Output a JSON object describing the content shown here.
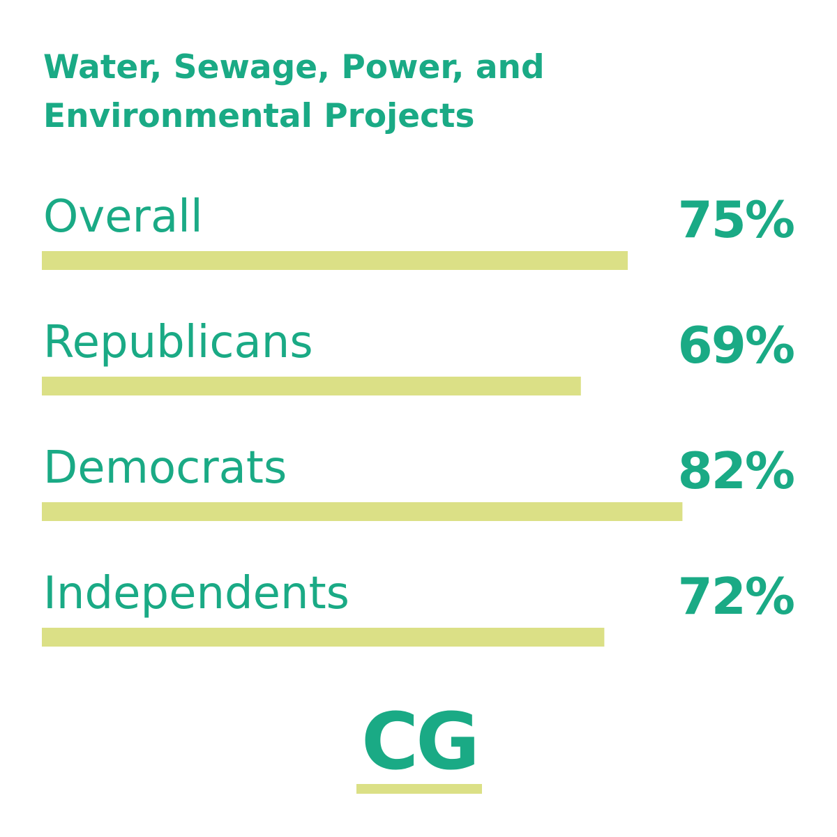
{
  "colors": {
    "accent": "#1aaa85",
    "bar": "#dbe086",
    "background": "#ffffff"
  },
  "chart_data": {
    "type": "bar",
    "orientation": "horizontal",
    "title_lines": [
      "Water, Sewage, Power, and",
      "Environmental Projects"
    ],
    "categories": [
      "Overall",
      "Republicans",
      "Democrats",
      "Independents"
    ],
    "values": [
      75,
      69,
      82,
      72
    ],
    "value_labels": [
      "75%",
      "69%",
      "82%",
      "72%"
    ],
    "unit": "%",
    "grid": false,
    "legend": "none"
  },
  "logo": {
    "text": "CG"
  }
}
